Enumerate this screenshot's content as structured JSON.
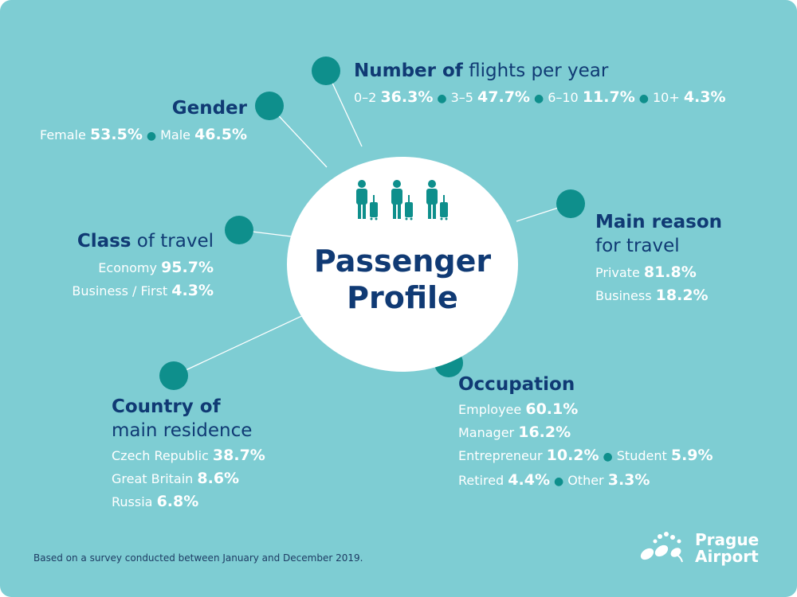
{
  "title": "Passenger Profile",
  "colors": {
    "background": "#7ecdd3",
    "accent": "#0e8f8c",
    "navy": "#103a74",
    "hub": "#ffffff"
  },
  "icons": {
    "hub": "passenger-with-luggage-icon",
    "logo": "prague-airport-logo"
  },
  "sections": {
    "flights": {
      "heading_bold": "Number of",
      "heading_rest": "flights per year",
      "items": [
        {
          "label": "0–2",
          "value": "36.3%"
        },
        {
          "label": "3–5",
          "value": "47.7%"
        },
        {
          "label": "6–10",
          "value": "11.7%"
        },
        {
          "label": "10+",
          "value": "4.3%"
        }
      ]
    },
    "gender": {
      "heading_bold": "Gender",
      "items": [
        {
          "label": "Female",
          "value": "53.5%"
        },
        {
          "label": "Male",
          "value": "46.5%"
        }
      ]
    },
    "class": {
      "heading_bold": "Class",
      "heading_rest": "of travel",
      "items": [
        {
          "label": "Economy",
          "value": "95.7%"
        },
        {
          "label": "Business / First",
          "value": "4.3%"
        }
      ]
    },
    "reason": {
      "heading_line1": "Main reason",
      "heading_line2": "for travel",
      "items": [
        {
          "label": "Private",
          "value": "81.8%"
        },
        {
          "label": "Business",
          "value": "18.2%"
        }
      ]
    },
    "occupation": {
      "heading_bold": "Occupation",
      "items": [
        {
          "label": "Employee",
          "value": "60.1%"
        },
        {
          "label": "Manager",
          "value": "16.2%"
        },
        {
          "label": "Entrepreneur",
          "value": "10.2%"
        },
        {
          "label": "Student",
          "value": "5.9%"
        },
        {
          "label": "Retired",
          "value": "4.4%"
        },
        {
          "label": "Other",
          "value": "3.3%"
        }
      ]
    },
    "country": {
      "heading_line1": "Country of",
      "heading_line2": "main residence",
      "items": [
        {
          "label": "Czech Republic",
          "value": "38.7%"
        },
        {
          "label": "Great Britain",
          "value": "8.6%"
        },
        {
          "label": "Russia",
          "value": "6.8%"
        }
      ]
    }
  },
  "footnote": "Based on a survey conducted between January and December 2019.",
  "logo": {
    "line1": "Prague",
    "line2": "Airport"
  }
}
